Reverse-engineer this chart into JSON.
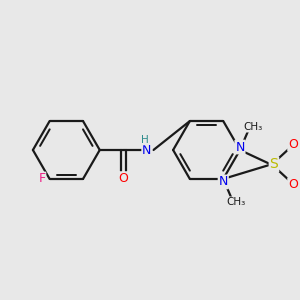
{
  "background_color": "#e8e8e8",
  "bond_color": "#1a1a1a",
  "atom_colors": {
    "F": "#ee2288",
    "O": "#ff0000",
    "N": "#0000ee",
    "S": "#bbbb00",
    "H": "#2e8b8b",
    "C": "#1a1a1a"
  },
  "figsize": [
    3.0,
    3.0
  ],
  "dpi": 100
}
